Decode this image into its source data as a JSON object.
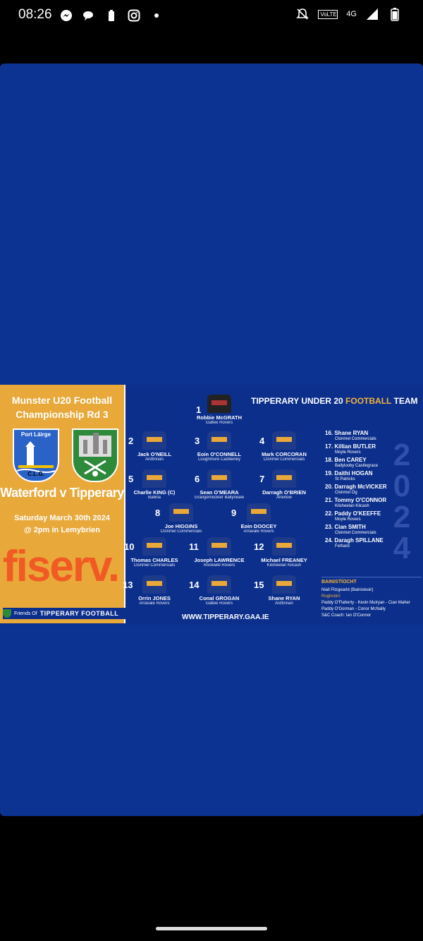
{
  "status": {
    "time": "08:26",
    "network": "4G",
    "volte": "VoLTE"
  },
  "poster": {
    "left": {
      "title_line1": "Munster U20 Football",
      "title_line2": "Championship Rd 3",
      "crest_left": "Port Láirge",
      "crest_left_sub": "C.L.G.",
      "match": "Waterford v Tipperary",
      "date_line1": "Saturday March 30th 2024",
      "date_line2": "@ 2pm in Lemybrien",
      "sponsor": "fiserv.",
      "friends_small": "Friends Of",
      "friends_big": "TIPPERARY FOOTBALL"
    },
    "team_title_a": "TIPPERARY UNDER 20",
    "team_title_b": "FOOTBALL",
    "team_title_c": "TEAM",
    "players": [
      {
        "num": "1",
        "name": "Robbie McGRATH",
        "club": "Galtee Rovers"
      },
      {
        "num": "2",
        "name": "Jack O'NEILL",
        "club": "Ardfinnan"
      },
      {
        "num": "3",
        "name": "Eoin O'CONNELL",
        "club": "Loughmore Castleiney"
      },
      {
        "num": "4",
        "name": "Mark CORCORAN",
        "club": "Clonmel Commercials"
      },
      {
        "num": "5",
        "name": "Charlie KING (C)",
        "club": "Ballina"
      },
      {
        "num": "6",
        "name": "Sean O'MEARA",
        "club": "Grangemockler Ballyneale"
      },
      {
        "num": "7",
        "name": "Darragh O'BRIEN",
        "club": "Aherlow"
      },
      {
        "num": "8",
        "name": "Joe HIGGINS",
        "club": "Clonmel Commercials"
      },
      {
        "num": "9",
        "name": "Eoin DOOCEY",
        "club": "Arravale Rovers"
      },
      {
        "num": "10",
        "name": "Thomas CHARLES",
        "club": "Clonmel Commercials"
      },
      {
        "num": "11",
        "name": "Joseph LAWRENCE",
        "club": "Rockwell Rovers"
      },
      {
        "num": "12",
        "name": "Michael FREANEY",
        "club": "Kilsheelan Kilcash"
      },
      {
        "num": "13",
        "name": "Orrin JONES",
        "club": "Arravale Rovers"
      },
      {
        "num": "14",
        "name": "Conal GROGAN",
        "club": "Galtee Rovers"
      },
      {
        "num": "15",
        "name": "Shane RYAN",
        "club": "Ardfinnan"
      }
    ],
    "subs": [
      {
        "name": "16. Shane RYAN",
        "club": "Clonmel Commercials"
      },
      {
        "name": "17. Killian BUTLER",
        "club": "Moyle Rovers"
      },
      {
        "name": "18. Ben CAREY",
        "club": "Ballylooby Castlegrace"
      },
      {
        "name": "19. Daithi HOGAN",
        "club": "St Patricks"
      },
      {
        "name": "20. Darragh McVICKER",
        "club": "Clonmel Óg"
      },
      {
        "name": "21. Tommy O'CONNOR",
        "club": "Kilsheelan Kilcash"
      },
      {
        "name": "22. Paddy O'KEEFFE",
        "club": "Moyle Rovers"
      },
      {
        "name": "23. Cian SMITH",
        "club": "Clonmel Commercials"
      },
      {
        "name": "24. Daragh SPILLANE",
        "club": "Fethard"
      }
    ],
    "year": "2024",
    "management": {
      "heading": "BAINISTÍOCHT",
      "manager": "Niall Fitzgearld (Bainisteoir)",
      "selectors_label": "Roghnóirí:",
      "selectors1": "Paddy O'Flaherty - Kevin Mulryan - Cian Maher",
      "selectors2": "Paddy O'Gorman - Conor McNally",
      "coach": "S&C Coach: Ian O'Connor"
    },
    "website": "WWW.TIPPERARY.GAA.IE"
  }
}
